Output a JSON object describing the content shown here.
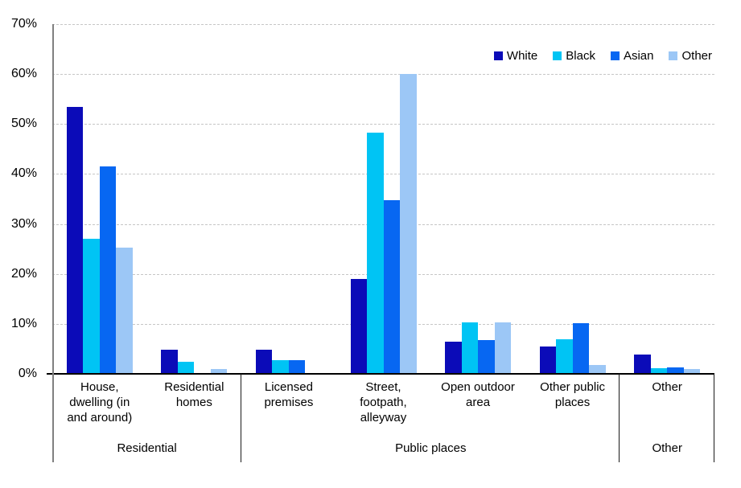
{
  "chart_data": {
    "type": "bar",
    "title": "",
    "xlabel": "",
    "ylabel": "",
    "ylim": [
      0,
      70
    ],
    "yticks": [
      0,
      10,
      20,
      30,
      40,
      50,
      60,
      70
    ],
    "ytick_suffix": "%",
    "grid": "horizontal-dashed",
    "legend_position": "top-right-inside",
    "categories": [
      "House,\ndwelling (in\nand around)",
      "Residential\nhomes",
      "Licensed\npremises",
      "Street,\nfootpath,\nalleyway",
      "Open outdoor\narea",
      "Other public\nplaces",
      "Other"
    ],
    "category_groups": [
      {
        "label": "Residential",
        "span": 2
      },
      {
        "label": "Public places",
        "span": 4
      },
      {
        "label": "Other",
        "span": 1
      }
    ],
    "series": [
      {
        "name": "White",
        "color": "#0B0BB8",
        "values": [
          53.5,
          4.8,
          4.9,
          19.0,
          6.5,
          5.5,
          3.9
        ]
      },
      {
        "name": "Black",
        "color": "#00C4F4",
        "values": [
          27.0,
          2.4,
          2.7,
          48.3,
          10.3,
          6.9,
          1.1
        ]
      },
      {
        "name": "Asian",
        "color": "#0767F2",
        "values": [
          41.5,
          0,
          2.7,
          34.8,
          6.8,
          10.1,
          1.3
        ]
      },
      {
        "name": "Other",
        "color": "#9CC7F6",
        "values": [
          25.3,
          0.9,
          0,
          60.0,
          10.3,
          1.8,
          1.0
        ]
      }
    ],
    "colors": {
      "axis_line": "#808080",
      "baseline": "#000000",
      "gridline": "#c6c6c6",
      "group_divider": "#1a1a1a",
      "text": "#000000",
      "background": "#ffffff"
    }
  }
}
